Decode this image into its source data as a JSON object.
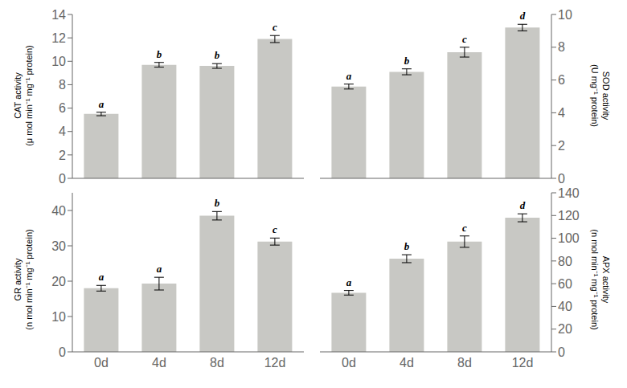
{
  "chart_data": [
    {
      "type": "bar",
      "ylabel": "CAT activity\n(μ mol min⁻¹ mg⁻¹ protein)",
      "categories": [
        "0d",
        "4d",
        "8d",
        "12d"
      ],
      "values": [
        5.5,
        9.7,
        9.6,
        11.9
      ],
      "errors": [
        0.15,
        0.2,
        0.2,
        0.3
      ],
      "annotations": [
        "a",
        "b",
        "b",
        "c"
      ],
      "color": "#c8c8c4",
      "ylim": [
        0,
        14
      ],
      "yticks": [
        0,
        2,
        4,
        6,
        8,
        10,
        12,
        14
      ],
      "tick_labels": "y"
    },
    {
      "type": "bar",
      "ylabel": "SOD activity\n(U mg⁻¹ protein)",
      "categories": [
        "0d",
        "4d",
        "8d",
        "12d"
      ],
      "values": [
        5.6,
        6.5,
        7.7,
        9.2
      ],
      "errors": [
        0.15,
        0.18,
        0.3,
        0.2
      ],
      "annotations": [
        "a",
        "b",
        "c",
        "d"
      ],
      "color": "#c8c8c4",
      "ylim": [
        0,
        10
      ],
      "yticks": [
        0,
        2,
        4,
        6,
        8,
        10
      ],
      "tick_labels": "y"
    },
    {
      "type": "bar",
      "ylabel": "GR activity\n(n mol min⁻¹ mg⁻¹ protein)",
      "categories": [
        "0d",
        "4d",
        "8d",
        "12d"
      ],
      "values": [
        18.0,
        19.3,
        38.5,
        31.2
      ],
      "errors": [
        0.8,
        1.8,
        1.2,
        1.0
      ],
      "annotations": [
        "a",
        "a",
        "b",
        "c"
      ],
      "color": "#c8c8c4",
      "ylim": [
        0,
        45
      ],
      "yticks": [
        0,
        10,
        20,
        30,
        40
      ]
    },
    {
      "type": "bar",
      "ylabel": "APX activity\n(n mol min⁻¹ mg⁻¹ protein)",
      "categories": [
        "0d",
        "4d",
        "8d",
        "12d"
      ],
      "values": [
        52,
        82,
        97,
        118
      ],
      "errors": [
        2.0,
        3.5,
        5.0,
        3.5
      ],
      "annotations": [
        "a",
        "b",
        "c",
        "d"
      ],
      "color": "#c8c8c4",
      "ylim": [
        0,
        140
      ],
      "yticks": [
        0,
        20,
        40,
        60,
        80,
        100,
        120,
        140
      ]
    }
  ]
}
